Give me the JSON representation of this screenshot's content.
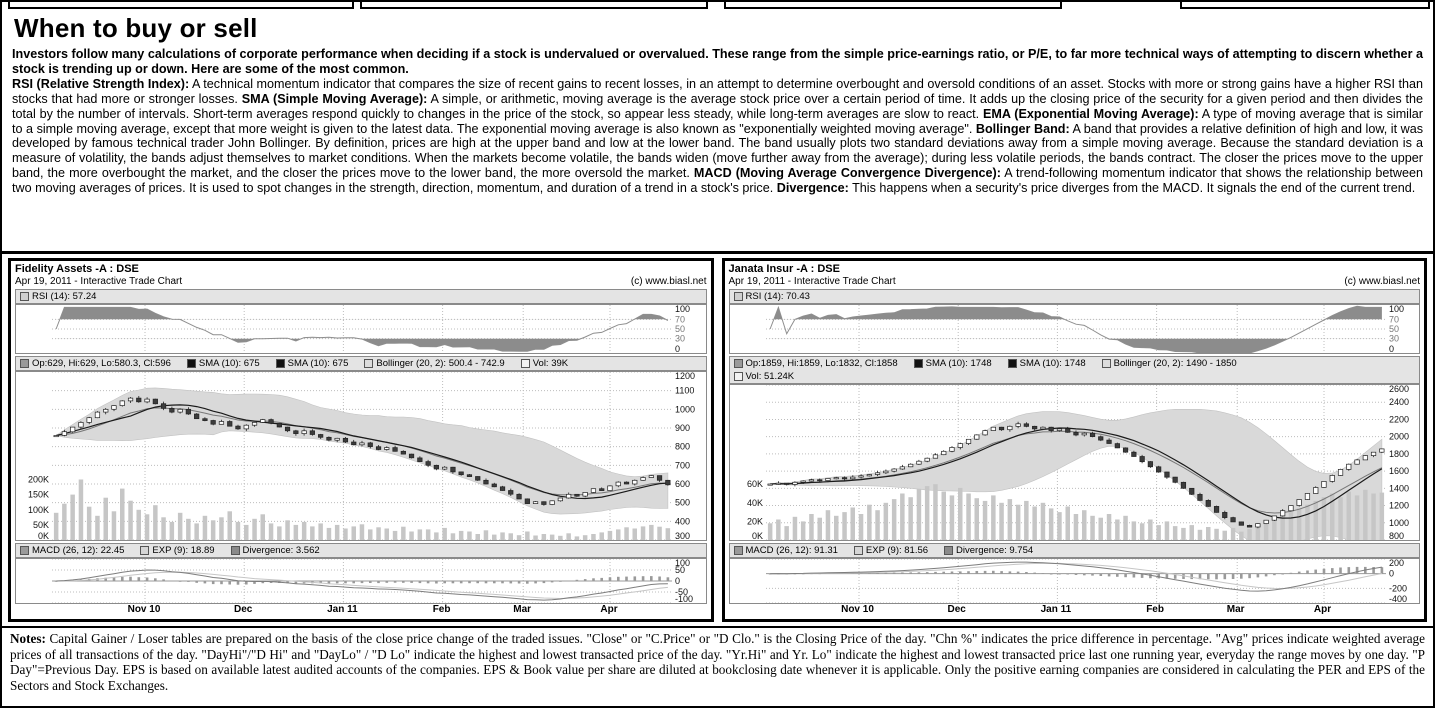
{
  "page": {
    "title": "When to buy or sell",
    "intro": "Investors follow many calculations of corporate performance when deciding if a stock is undervalued or overvalued.  These range from the simple price-earnings ratio, or P/E, to far more technical ways of attempting to discern whether a stock is trending up or down. Here are some of the most common.",
    "definitions": [
      {
        "term": "RSI (Relative Strength Index):",
        "text": "A technical momentum indicator that compares the size of recent gains to recent losses, in an attempt to determine overbought and oversold conditions of an asset. Stocks with more or strong gains have a higher RSI than stocks that had more or stronger losses."
      },
      {
        "term": "SMA (Simple Moving Average):",
        "text": "A simple, or arithmetic, moving average is the average stock price over a certain period of time. It adds up the closing price of the security for a given period and then divides the total by the number of intervals. Short-term averages respond quickly to changes in the price of the stock, so appear less steady, while long-term averages are slow to react."
      },
      {
        "term": "EMA (Exponential Moving Average):",
        "text": "A type of moving average that is similar to a simple moving average, except that more weight is given to the latest data. The exponential moving average is also known as \"exponentially weighted moving average\"."
      },
      {
        "term": "Bollinger Band:",
        "text": "A band that provides a relative definition of high and low, it was developed by famous technical trader John Bollinger. By definition, prices are high at the upper band and low at the lower band. The band usually plots two standard deviations away from a simple moving average. Because the standard deviation is a measure of volatility, the bands adjust themselves to market conditions. When the markets become volatile, the bands widen (move further away from the average); during less volatile periods, the bands contract. The closer the prices move to the upper band, the more overbought the market, and the closer the prices move to the lower band, the more oversold the market."
      },
      {
        "term": "MACD (Moving Average Convergence Divergence):",
        "text": "A trend-following momentum indicator that shows the relationship between two moving averages of prices. It is used to spot changes in the strength, direction, momentum, and duration of a trend in a stock's price."
      },
      {
        "term": "Divergence:",
        "text": "This happens when a security's price diverges from the MACD. It signals the end of the current trend."
      }
    ],
    "notes_label": "Notes:",
    "notes_text": "Capital Gainer / Loser tables are prepared on the basis of the close price change of the traded issues. \"Close\" or \"C.Price\" or \"D Clo.\" is the Closing Price of the day. \"Chn %\" indicates the price difference in percentage. \"Avg\" prices indicate weighted average prices of all transactions of the day.  \"DayHi\"/\"D Hi\" and \"DayLo\" / \"D Lo\" indicate the highest and lowest transacted price of the day.  \"Yr.Hi\" and Yr. Lo\" indicate the highest and lowest transacted price last one running year, everyday the range moves by one day. \"P Day\"=Previous Day. EPS is based on available latest audited accounts of the companies. EPS & Book value per share are diluted at bookclosing date whenever it is applicable. Only the positive earning companies are considered in calculating the PER and EPS of the Sectors and Stock Exchanges."
  },
  "charts": [
    {
      "title": "Fidelity Assets -A : DSE",
      "subtitle": "Apr 19, 2011 - Interactive Trade Chart",
      "copyright": "(c) www.biasl.net",
      "legend_rsi_rows": [
        [
          {
            "swatch": "#cfcfcf",
            "label": "RSI (14): 57.24"
          }
        ]
      ],
      "legend_price_rows": [
        [
          {
            "swatch": "#9a9a9a",
            "label": "Op:629, Hi:629, Lo:580.3, Cl:596"
          },
          {
            "swatch": "#111111",
            "label": "SMA (10): 675"
          },
          {
            "swatch": "#111111",
            "label": "SMA (10): 675"
          },
          {
            "swatch": "#dcdcdc",
            "label": "Bollinger (20, 2): 500.4 - 742.9"
          },
          {
            "swatch": "#f2f2f2",
            "label": "Vol: 39K"
          }
        ]
      ],
      "legend_macd_rows": [
        [
          {
            "swatch": "#9a9a9a",
            "label": "MACD (26, 12): 22.45"
          },
          {
            "swatch": "#d6d6d6",
            "label": "EXP (9): 18.89"
          },
          {
            "swatch": "#8a8a8a",
            "label": "Divergence: 3.562"
          }
        ]
      ]
    },
    {
      "title": "Janata Insur -A : DSE",
      "subtitle": "Apr 19, 2011 - Interactive Trade Chart",
      "copyright": "(c) www.biasl.net",
      "legend_rsi_rows": [
        [
          {
            "swatch": "#cfcfcf",
            "label": "RSI (14): 70.43"
          }
        ]
      ],
      "legend_price_rows": [
        [
          {
            "swatch": "#9a9a9a",
            "label": "Op:1859, Hi:1859, Lo:1832, Cl:1858"
          },
          {
            "swatch": "#111111",
            "label": "SMA (10): 1748"
          },
          {
            "swatch": "#111111",
            "label": "SMA (10): 1748"
          },
          {
            "swatch": "#dcdcdc",
            "label": "Bollinger (20, 2): 1490 - 1850"
          }
        ],
        [
          {
            "swatch": "#f2f2f2",
            "label": "Vol: 51.24K"
          }
        ]
      ],
      "legend_macd_rows": [
        [
          {
            "swatch": "#9a9a9a",
            "label": "MACD (26, 12): 91.31"
          },
          {
            "swatch": "#d6d6d6",
            "label": "EXP (9): 81.56"
          },
          {
            "swatch": "#8a8a8a",
            "label": "Divergence: 9.754"
          }
        ]
      ]
    }
  ],
  "chart_data": [
    {
      "type": "candlestick",
      "title": "Fidelity Assets -A : DSE",
      "x_labels": [
        {
          "label": "Nov 10",
          "pos": 0.15
        },
        {
          "label": "Dec",
          "pos": 0.31
        },
        {
          "label": "Jan 11",
          "pos": 0.47
        },
        {
          "label": "Feb",
          "pos": 0.63
        },
        {
          "label": "Mar",
          "pos": 0.76
        },
        {
          "label": "Apr",
          "pos": 0.9
        }
      ],
      "price_axis": {
        "min": 300,
        "max": 1200,
        "ticks": [
          1200,
          1100,
          1000,
          900,
          800,
          700,
          600,
          500,
          400,
          300
        ]
      },
      "volume_axis": {
        "max": 200,
        "ticks": [
          {
            "label": "200K",
            "value": 200
          },
          {
            "label": "150K",
            "value": 150
          },
          {
            "label": "100K",
            "value": 100
          },
          {
            "label": "50K",
            "value": 50
          },
          {
            "label": "0K",
            "value": 0
          }
        ]
      },
      "rsi_axis": {
        "ticks": [
          100,
          70,
          50,
          30,
          0
        ]
      },
      "macd_axis": {
        "min": -100,
        "max": 100,
        "ticks": [
          100,
          50,
          0,
          -50,
          -100
        ]
      },
      "closes": [
        860,
        880,
        905,
        930,
        955,
        985,
        1000,
        1020,
        1045,
        1060,
        1040,
        1055,
        1030,
        1005,
        985,
        1000,
        975,
        950,
        940,
        920,
        935,
        910,
        895,
        915,
        930,
        945,
        925,
        905,
        885,
        870,
        885,
        865,
        850,
        835,
        845,
        825,
        810,
        820,
        800,
        785,
        795,
        775,
        760,
        740,
        720,
        700,
        680,
        690,
        665,
        650,
        640,
        620,
        600,
        585,
        565,
        545,
        520,
        495,
        505,
        490,
        510,
        525,
        545,
        535,
        555,
        575,
        565,
        590,
        610,
        600,
        620,
        635,
        645,
        620,
        596
      ],
      "volumes": [
        90,
        120,
        150,
        200,
        110,
        80,
        140,
        95,
        170,
        130,
        100,
        85,
        115,
        75,
        60,
        90,
        70,
        55,
        80,
        65,
        75,
        95,
        60,
        50,
        70,
        85,
        55,
        45,
        65,
        50,
        60,
        45,
        55,
        40,
        50,
        38,
        45,
        52,
        35,
        42,
        38,
        30,
        44,
        28,
        35,
        35,
        25,
        40,
        22,
        30,
        28,
        20,
        32,
        18,
        25,
        22,
        16,
        28,
        15,
        20,
        18,
        14,
        22,
        12,
        16,
        20,
        25,
        30,
        35,
        42,
        38,
        45,
        50,
        44,
        39
      ]
    },
    {
      "type": "candlestick",
      "title": "Janata Insur -A : DSE",
      "x_labels": [
        {
          "label": "Nov 10",
          "pos": 0.15
        },
        {
          "label": "Dec",
          "pos": 0.31
        },
        {
          "label": "Jan 11",
          "pos": 0.47
        },
        {
          "label": "Feb",
          "pos": 0.63
        },
        {
          "label": "Mar",
          "pos": 0.76
        },
        {
          "label": "Apr",
          "pos": 0.9
        }
      ],
      "price_axis": {
        "min": 800,
        "max": 2600,
        "ticks": [
          2600,
          2400,
          2200,
          2000,
          1800,
          1600,
          1400,
          1200,
          1000,
          800
        ]
      },
      "volume_axis": {
        "max": 60,
        "ticks": [
          {
            "label": "60K",
            "value": 60
          },
          {
            "label": "40K",
            "value": 40
          },
          {
            "label": "20K",
            "value": 20
          },
          {
            "label": "0K",
            "value": 0
          }
        ]
      },
      "rsi_axis": {
        "ticks": [
          100,
          70,
          50,
          30,
          0
        ]
      },
      "macd_axis": {
        "min": -400,
        "max": 200,
        "ticks": [
          200,
          0,
          -200,
          -400
        ]
      },
      "closes": [
        1450,
        1460,
        1445,
        1470,
        1485,
        1500,
        1490,
        1515,
        1525,
        1510,
        1530,
        1545,
        1560,
        1580,
        1600,
        1625,
        1650,
        1680,
        1715,
        1750,
        1790,
        1830,
        1875,
        1920,
        1970,
        2020,
        2070,
        2110,
        2080,
        2120,
        2150,
        2120,
        2090,
        2110,
        2070,
        2090,
        2050,
        2020,
        2040,
        2000,
        1960,
        1920,
        1870,
        1820,
        1770,
        1710,
        1650,
        1590,
        1530,
        1470,
        1400,
        1330,
        1260,
        1190,
        1120,
        1060,
        1010,
        970,
        950,
        990,
        1030,
        1080,
        1140,
        1200,
        1270,
        1340,
        1410,
        1480,
        1550,
        1620,
        1680,
        1730,
        1780,
        1820,
        1858
      ],
      "volumes": [
        18,
        22,
        15,
        25,
        20,
        28,
        24,
        32,
        26,
        30,
        35,
        28,
        38,
        32,
        40,
        44,
        50,
        46,
        55,
        58,
        60,
        52,
        48,
        56,
        50,
        45,
        42,
        48,
        40,
        44,
        38,
        42,
        36,
        40,
        34,
        30,
        36,
        28,
        32,
        26,
        24,
        28,
        22,
        26,
        20,
        18,
        22,
        16,
        20,
        15,
        13,
        16,
        11,
        14,
        12,
        10,
        13,
        9,
        12,
        15,
        18,
        22,
        26,
        30,
        34,
        38,
        42,
        46,
        50,
        46,
        52,
        48,
        54,
        50,
        51
      ]
    }
  ]
}
